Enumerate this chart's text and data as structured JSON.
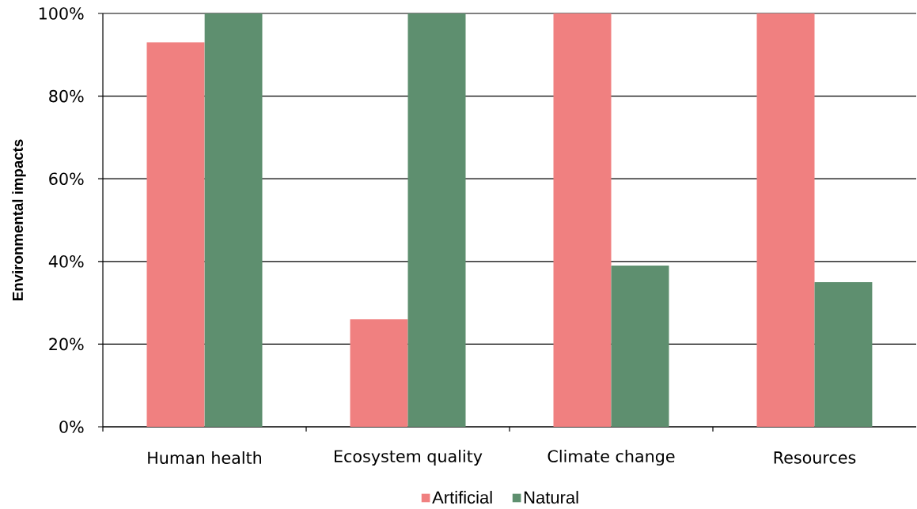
{
  "chart_data": {
    "type": "bar",
    "ylabel": "Environmental impacts",
    "categories": [
      "Human health",
      "Ecosystem quality",
      "Climate change",
      "Resources"
    ],
    "series": [
      {
        "name": "Artificial",
        "color": "#f08080",
        "values": [
          93,
          26,
          100,
          100
        ]
      },
      {
        "name": "Natural",
        "color": "#5e8f6f",
        "values": [
          100,
          100,
          39,
          35
        ]
      }
    ],
    "ylim": [
      0,
      100
    ],
    "yticks": [
      {
        "value": 0,
        "label": "0%"
      },
      {
        "value": 20,
        "label": "20%"
      },
      {
        "value": 40,
        "label": "40%"
      },
      {
        "value": 60,
        "label": "60%"
      },
      {
        "value": 80,
        "label": "80%"
      },
      {
        "value": 100,
        "label": "100%"
      }
    ],
    "grid": "y",
    "legend": "bottom"
  }
}
